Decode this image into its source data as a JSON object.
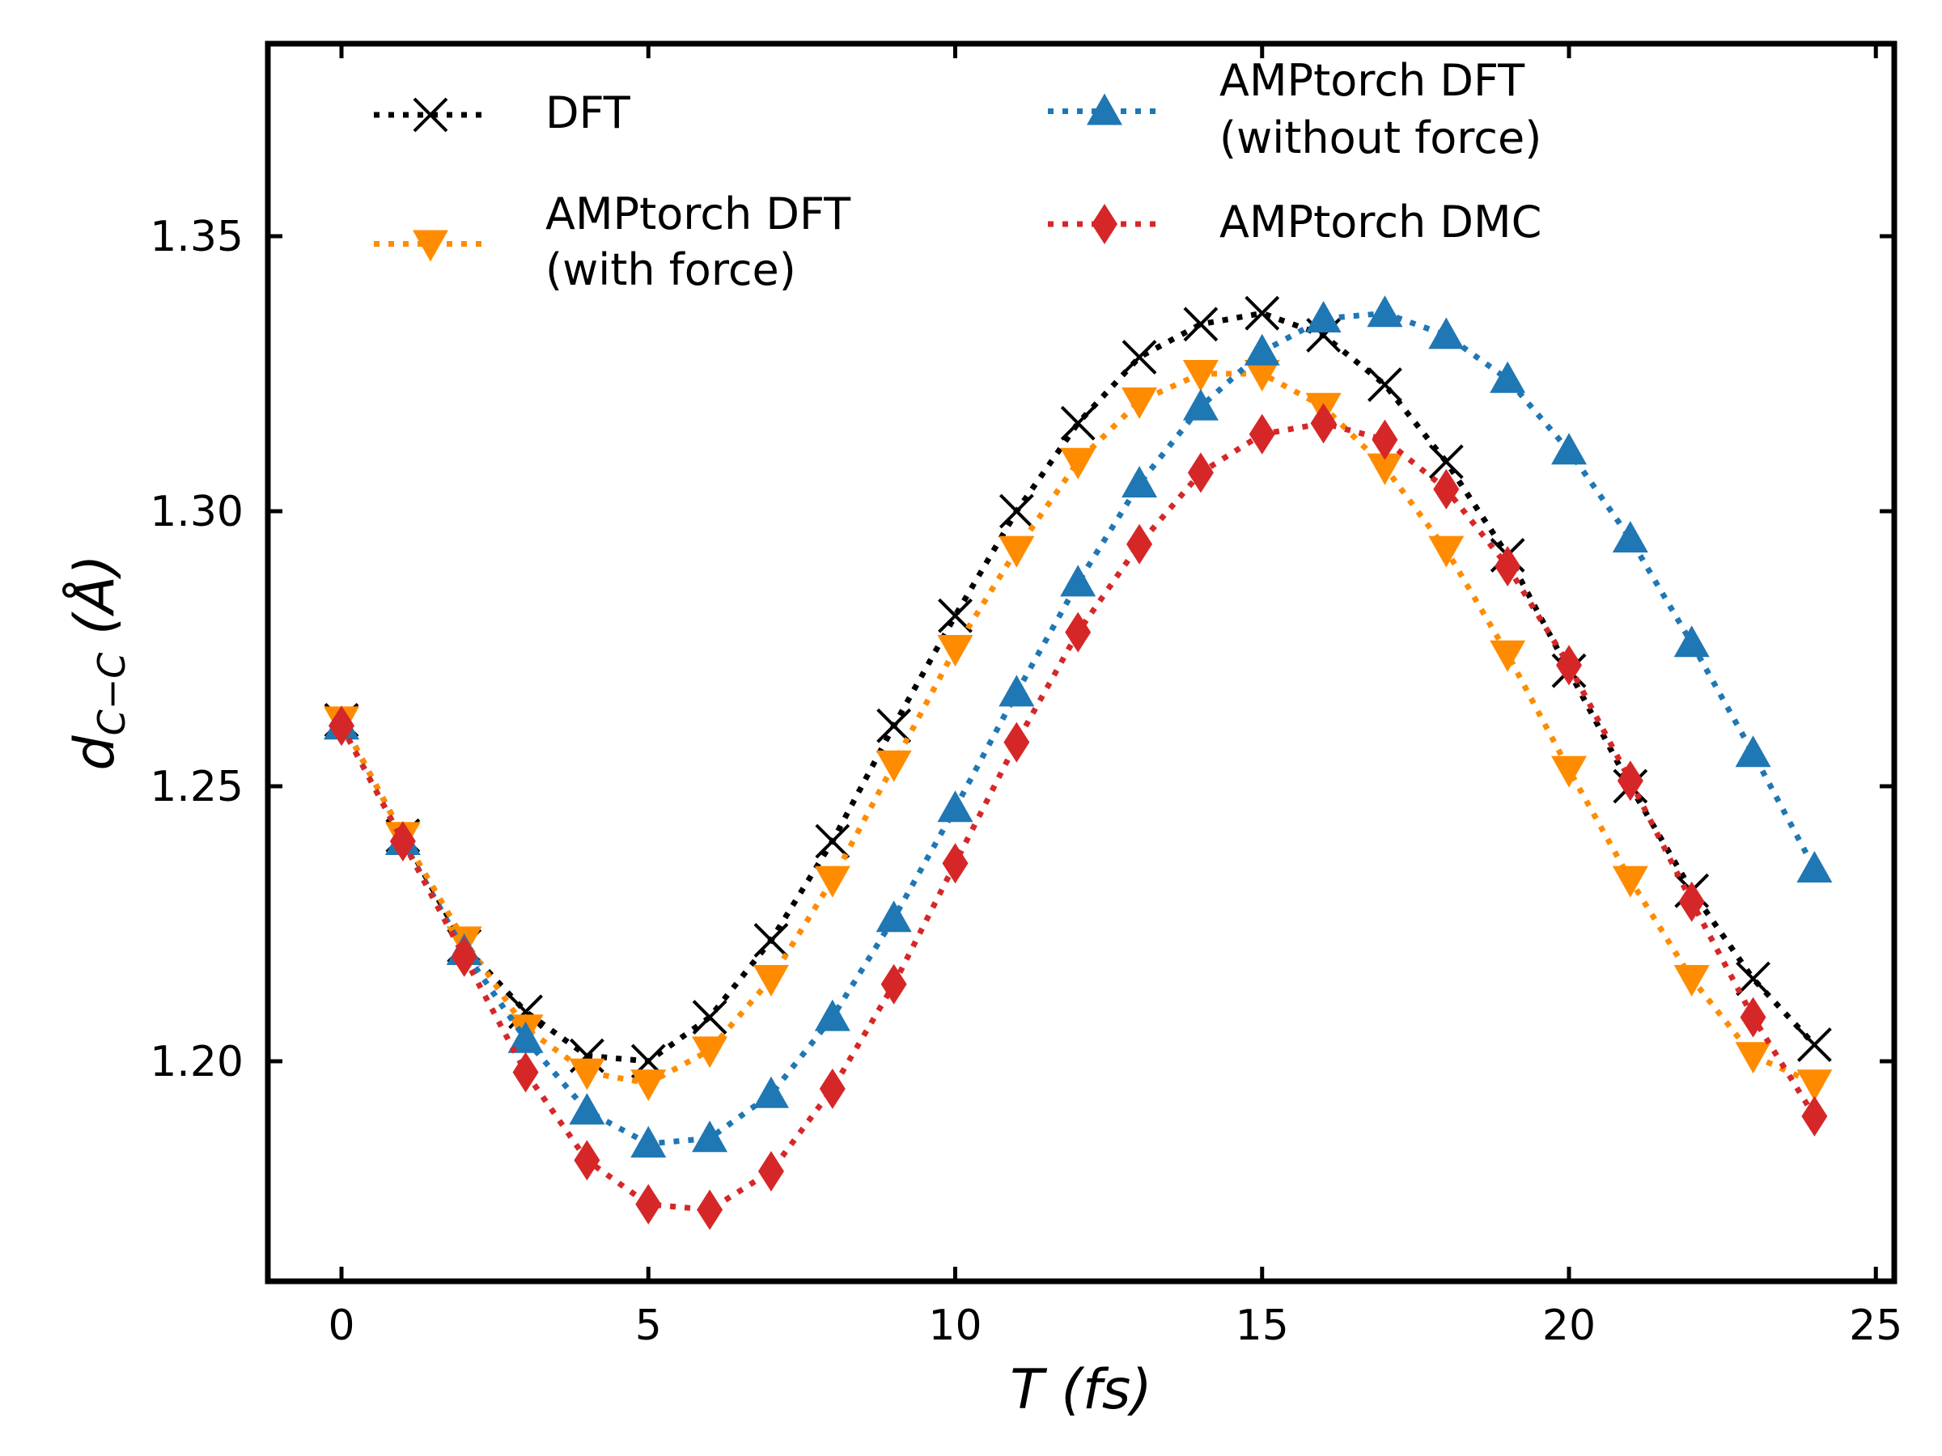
{
  "chart_data": {
    "type": "line",
    "xlabel": "T (fs)",
    "ylabel": "d_{C-C} (Å)",
    "xlim": [
      -1.2,
      25.3
    ],
    "ylim": [
      1.16,
      1.385
    ],
    "x_ticks": [
      0,
      5,
      10,
      15,
      20,
      25
    ],
    "x_tick_labels": [
      "0",
      "5",
      "10",
      "15",
      "20",
      "25"
    ],
    "y_ticks": [
      1.2,
      1.25,
      1.3,
      1.35
    ],
    "y_tick_labels": [
      "1.20",
      "1.25",
      "1.30",
      "1.35"
    ],
    "grid": false,
    "legend_position": "top",
    "x": [
      0,
      1,
      2,
      3,
      4,
      5,
      6,
      7,
      8,
      9,
      10,
      11,
      12,
      13,
      14,
      15,
      16,
      17,
      18,
      19,
      20,
      21,
      22,
      23,
      24
    ],
    "series": [
      {
        "name": "DFT",
        "color": "#000000",
        "marker": "x",
        "values": [
          1.262,
          1.241,
          1.221,
          1.209,
          1.201,
          1.2,
          1.208,
          1.222,
          1.24,
          1.261,
          1.281,
          1.3,
          1.316,
          1.328,
          1.334,
          1.336,
          1.332,
          1.323,
          1.309,
          1.292,
          1.271,
          1.25,
          1.231,
          1.215,
          1.203
        ]
      },
      {
        "name": "AMPtorch DFT (with force)",
        "label_lines": [
          "AMPtorch DFT",
          "(with force)"
        ],
        "color": "#ff8c00",
        "marker": "triangle-down",
        "values": [
          1.262,
          1.241,
          1.222,
          1.206,
          1.198,
          1.196,
          1.202,
          1.215,
          1.233,
          1.254,
          1.275,
          1.293,
          1.309,
          1.32,
          1.325,
          1.325,
          1.319,
          1.308,
          1.293,
          1.274,
          1.253,
          1.233,
          1.215,
          1.201,
          1.196
        ]
      },
      {
        "name": "AMPtorch DFT (without force)",
        "label_lines": [
          "AMPtorch DFT",
          "(without force)"
        ],
        "color": "#1f77b4",
        "marker": "triangle-up",
        "values": [
          1.261,
          1.24,
          1.22,
          1.204,
          1.191,
          1.185,
          1.186,
          1.194,
          1.208,
          1.226,
          1.246,
          1.267,
          1.287,
          1.305,
          1.319,
          1.329,
          1.335,
          1.336,
          1.332,
          1.324,
          1.311,
          1.295,
          1.276,
          1.256,
          1.235
        ]
      },
      {
        "name": "AMPtorch DMC",
        "color": "#d62728",
        "marker": "diamond",
        "values": [
          1.261,
          1.24,
          1.219,
          1.198,
          1.182,
          1.174,
          1.173,
          1.18,
          1.195,
          1.214,
          1.236,
          1.258,
          1.278,
          1.294,
          1.307,
          1.314,
          1.316,
          1.313,
          1.304,
          1.29,
          1.272,
          1.251,
          1.229,
          1.208,
          1.19
        ]
      }
    ]
  }
}
